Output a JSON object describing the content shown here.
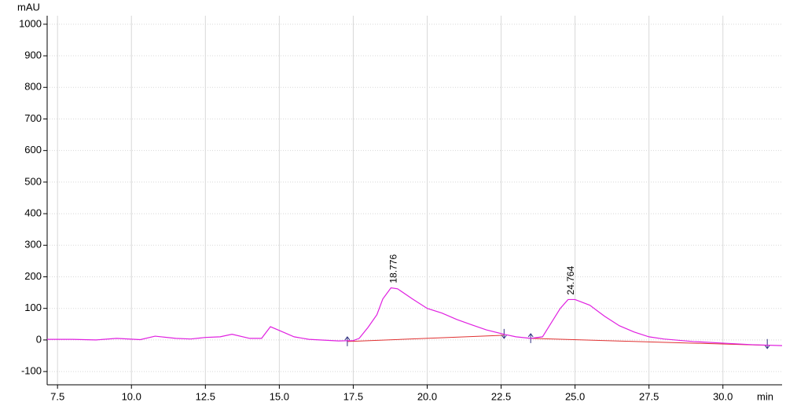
{
  "chart_data": {
    "type": "line",
    "y_label": "mAU",
    "x_label": "min",
    "xlim": [
      7.15,
      32.0
    ],
    "ylim": [
      -142,
      1027
    ],
    "xticks": [
      7.5,
      {
        "value": 10.0,
        "label": "10.0"
      },
      12.5,
      {
        "value": 15.0,
        "label": "15.0"
      },
      17.5,
      {
        "value": 20.0,
        "label": "20.0"
      },
      22.5,
      {
        "value": 25.0,
        "label": "25.0"
      },
      27.5,
      {
        "value": 30.0,
        "label": "30.0"
      }
    ],
    "yticks": [
      -100,
      0,
      100,
      200,
      300,
      400,
      500,
      600,
      700,
      800,
      900,
      1000
    ],
    "grid": true,
    "series": [
      {
        "color": "#e020e0",
        "x": [
          7.15,
          8,
          8.8,
          9.5,
          10.3,
          10.8,
          11.5,
          12,
          12.5,
          13,
          13.4,
          14,
          14.4,
          14.7,
          15,
          15.5,
          16,
          17,
          17.5,
          17.7,
          18,
          18.3,
          18.5,
          18.776,
          19,
          19.5,
          20,
          20.5,
          21,
          21.5,
          22,
          22.6,
          23,
          23.5,
          23.9,
          24.2,
          24.5,
          24.764,
          25,
          25.5,
          26,
          26.5,
          27,
          27.5,
          28,
          29,
          30,
          31,
          32
        ],
        "values": [
          2,
          2,
          0,
          5,
          1,
          12,
          5,
          3,
          8,
          10,
          18,
          5,
          5,
          42,
          30,
          10,
          2,
          -3,
          -2,
          5,
          40,
          80,
          130,
          165,
          162,
          130,
          100,
          85,
          65,
          48,
          32,
          18,
          10,
          5,
          10,
          55,
          100,
          128,
          128,
          110,
          75,
          45,
          25,
          10,
          3,
          -5,
          -10,
          -15,
          -18
        ]
      }
    ],
    "baseline_color": "#e03030",
    "baselines": [
      {
        "x": [
          17.3,
          22.6
        ],
        "values": [
          -5,
          15
        ]
      },
      {
        "x": [
          23.5,
          31.5
        ],
        "values": [
          5,
          -17
        ]
      }
    ],
    "annotations": [
      {
        "x": 18.776,
        "y": 165,
        "text": "18.776"
      },
      {
        "x": 24.764,
        "y": 128,
        "text": "24.764"
      }
    ]
  }
}
